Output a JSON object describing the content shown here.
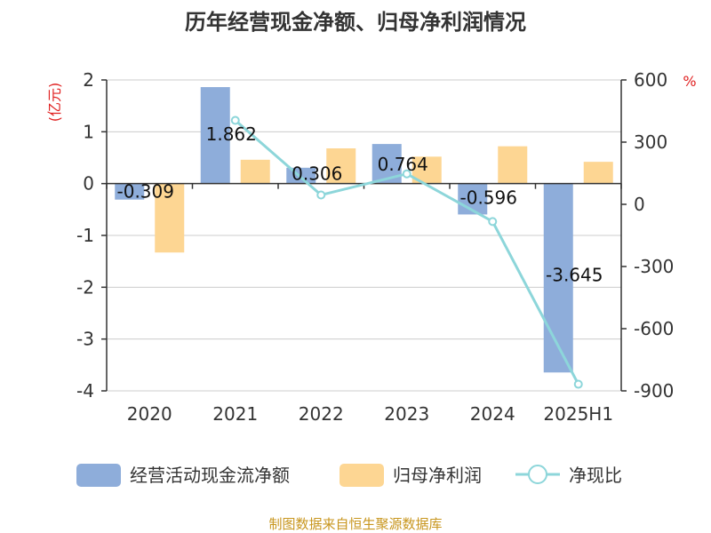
{
  "title": "历年经营现金净额、归母净利润情况",
  "source_note": "制图数据来自恒生聚源数据库",
  "colors": {
    "cash_flow": "#8eadda",
    "net_profit": "#fdd693",
    "ratio": "#8dd6da",
    "grid": "#cccccc",
    "axis": "#333333"
  },
  "chart_data": {
    "type": "bar",
    "categories": [
      "2020",
      "2021",
      "2022",
      "2023",
      "2024",
      "2025H1"
    ],
    "y_left": {
      "unit_label": "(亿元)",
      "min": -4,
      "max": 2,
      "ticks": [
        2,
        1,
        0,
        -1,
        -2,
        -3,
        -4
      ],
      "tick_labels": [
        "2",
        "1",
        "0",
        "-1",
        "-2",
        "-3",
        "-4"
      ]
    },
    "y_right": {
      "unit_label": "%",
      "min": -900,
      "max": 600,
      "ticks": [
        600,
        300,
        0,
        -300,
        -600,
        -900
      ],
      "tick_labels": [
        "600",
        "300",
        "0",
        "-300",
        "-600",
        "-900"
      ]
    },
    "grid": true,
    "legend_position": "bottom",
    "series": [
      {
        "name": "经营活动现金流净额",
        "type": "bar",
        "axis": "left",
        "values": [
          -0.309,
          1.862,
          0.306,
          0.764,
          -0.596,
          -3.645
        ],
        "data_labels": [
          "-0.309",
          "1.862",
          "0.306",
          "0.764",
          "-0.596",
          "-3.645"
        ]
      },
      {
        "name": "归母净利润",
        "type": "bar",
        "axis": "left",
        "values": [
          -1.33,
          0.46,
          0.68,
          0.52,
          0.72,
          0.42
        ]
      },
      {
        "name": "净现比",
        "type": "line",
        "axis": "right",
        "values": [
          null,
          405,
          45,
          147,
          -83,
          -868
        ]
      }
    ]
  }
}
